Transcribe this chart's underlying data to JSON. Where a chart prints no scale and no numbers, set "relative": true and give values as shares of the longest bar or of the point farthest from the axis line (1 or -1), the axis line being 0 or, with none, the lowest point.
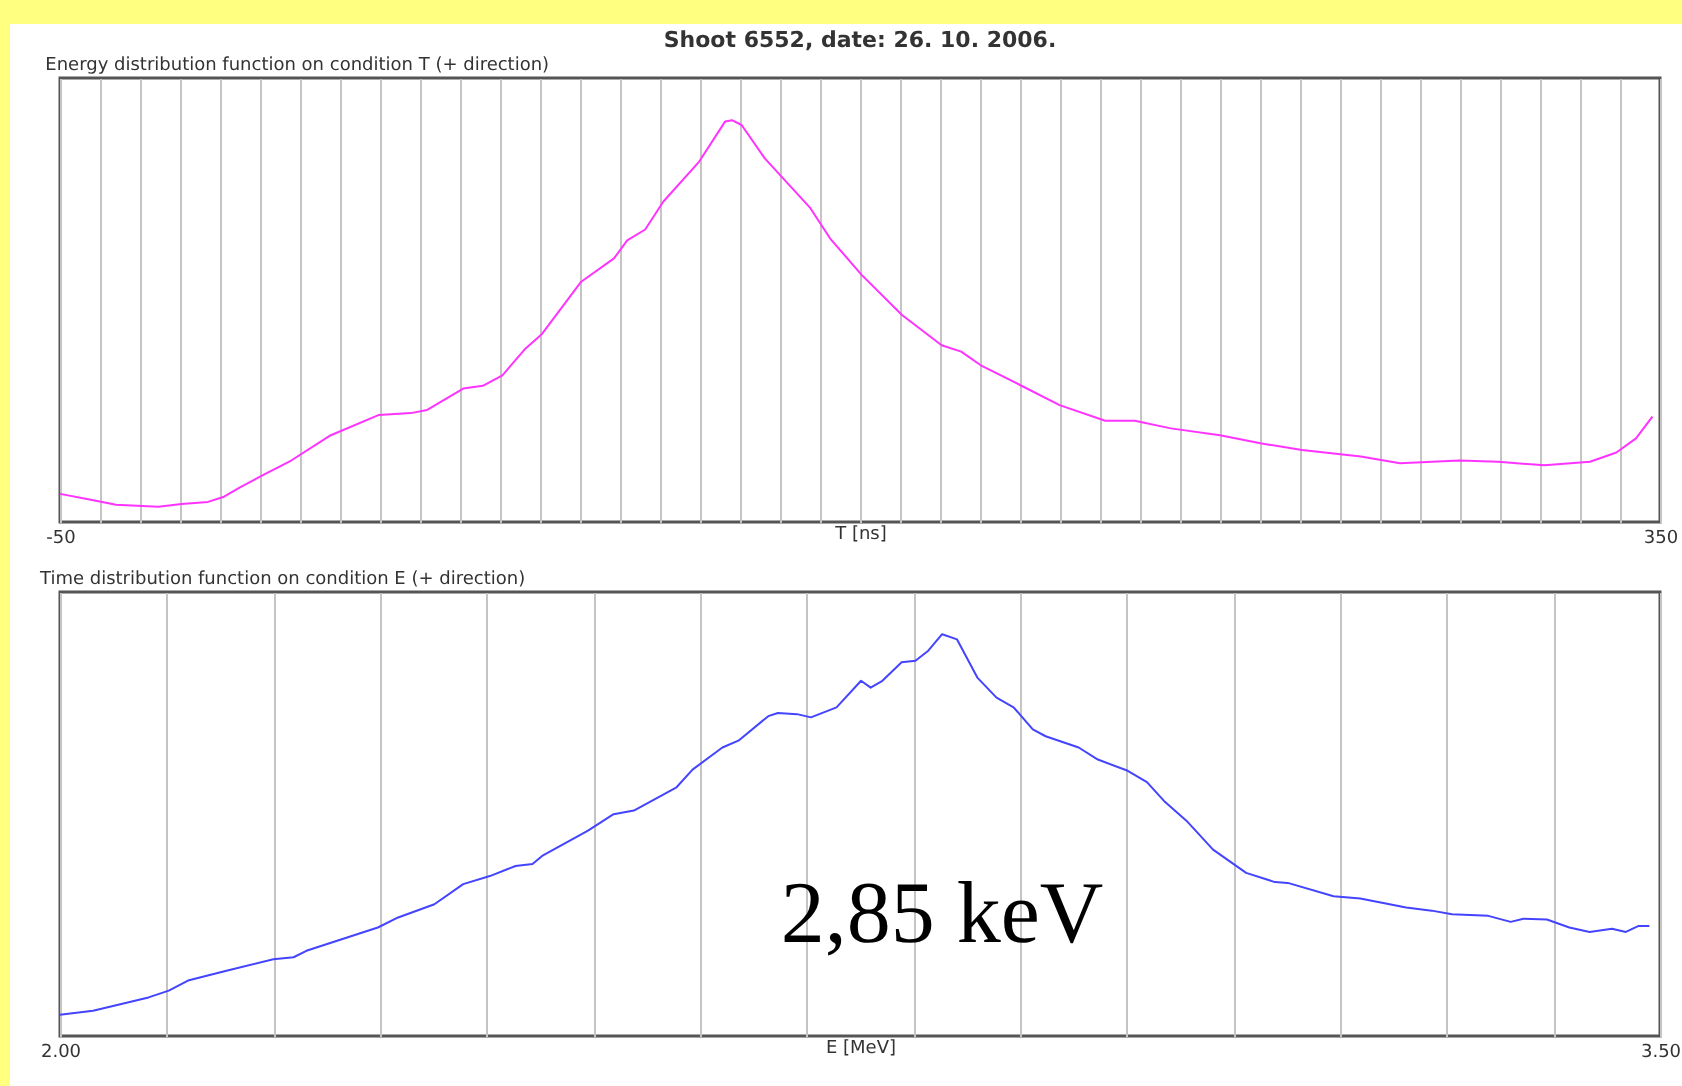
{
  "chart_data": [
    {
      "type": "line",
      "title": "Shoot 6552, date: 26. 10. 2006.",
      "subtitle": "Energy distribution function on condition T (+ direction)",
      "xlabel": "T [ns]",
      "relative": true,
      "color": "#ff33ff",
      "grid": "x",
      "xlim": [
        -50,
        350
      ],
      "xticks": [
        -50,
        {
          "value": -40,
          "label": null
        },
        {
          "value": -30,
          "label": null
        },
        {
          "value": -20,
          "label": null
        },
        {
          "value": -10,
          "label": null
        },
        {
          "value": 0,
          "label": null
        },
        {
          "value": 10,
          "label": null
        },
        {
          "value": 20,
          "label": null
        },
        {
          "value": 30,
          "label": null
        },
        {
          "value": 40,
          "label": null
        },
        {
          "value": 50,
          "label": null
        },
        {
          "value": 60,
          "label": null
        },
        {
          "value": 70,
          "label": null
        },
        {
          "value": 80,
          "label": null
        },
        {
          "value": 90,
          "label": null
        },
        {
          "value": 100,
          "label": null
        },
        {
          "value": 110,
          "label": null
        },
        {
          "value": 120,
          "label": null
        },
        {
          "value": 130,
          "label": null
        },
        {
          "value": 140,
          "label": null
        },
        {
          "value": 150,
          "label": null
        },
        {
          "value": 160,
          "label": null
        },
        {
          "value": 170,
          "label": null
        },
        {
          "value": 180,
          "label": null
        },
        {
          "value": 190,
          "label": null
        },
        {
          "value": 200,
          "label": null
        },
        {
          "value": 210,
          "label": null
        },
        {
          "value": 220,
          "label": null
        },
        {
          "value": 230,
          "label": null
        },
        {
          "value": 240,
          "label": null
        },
        {
          "value": 250,
          "label": null
        },
        {
          "value": 260,
          "label": null
        },
        {
          "value": 270,
          "label": null
        },
        {
          "value": 280,
          "label": null
        },
        {
          "value": 290,
          "label": null
        },
        {
          "value": 300,
          "label": null
        },
        {
          "value": 310,
          "label": null
        },
        {
          "value": 320,
          "label": null
        },
        {
          "value": 330,
          "label": null
        },
        {
          "value": 340,
          "label": null
        },
        350
      ],
      "x": [
        -50,
        -42.6,
        -36,
        -25.4,
        -19.6,
        -13,
        -9,
        -5,
        0,
        7.8,
        17.7,
        29.6,
        37.7,
        41.8,
        50.8,
        55.7,
        60.6,
        66.4,
        70.5,
        80.3,
        88.5,
        91.8,
        96.3,
        100.8,
        109.8,
        116.3,
        118,
        120.4,
        126.2,
        137.6,
        142.5,
        150.4,
        160.5,
        170.4,
        175.3,
        180.2,
        190,
        199.9,
        211.3,
        218.7,
        227.7,
        240,
        250.1,
        260.5,
        275.2,
        285,
        299.8,
        309.6,
        321.1,
        332.5,
        339.1,
        344,
        348.1
      ],
      "values": [
        0.07,
        0.056,
        0.043,
        0.038,
        0.045,
        0.05,
        0.063,
        0.086,
        0.113,
        0.153,
        0.216,
        0.266,
        0.271,
        0.279,
        0.332,
        0.339,
        0.365,
        0.432,
        0.468,
        0.598,
        0.656,
        0.701,
        0.728,
        0.797,
        0.897,
        0.997,
        1,
        0.988,
        0.905,
        0.781,
        0.706,
        0.615,
        0.515,
        0.44,
        0.424,
        0.39,
        0.341,
        0.291,
        0.252,
        0.252,
        0.233,
        0.216,
        0.196,
        0.179,
        0.163,
        0.146,
        0.153,
        0.15,
        0.141,
        0.15,
        0.173,
        0.208,
        0.262
      ]
    },
    {
      "type": "line",
      "title": "Time distribution function on condition E (+ direction)",
      "xlabel": "E [MeV]",
      "relative": true,
      "color": "#4444ff",
      "grid": "x",
      "xlim": [
        2,
        3.5
      ],
      "xticks": [
        {
          "value": 2,
          "label": "2.00"
        },
        {
          "value": 2.1,
          "label": null
        },
        {
          "value": 2.2,
          "label": null
        },
        {
          "value": 2.3,
          "label": null
        },
        {
          "value": 2.4,
          "label": null
        },
        {
          "value": 2.5,
          "label": null
        },
        {
          "value": 2.6,
          "label": null
        },
        {
          "value": 2.7,
          "label": null
        },
        {
          "value": 2.8,
          "label": null
        },
        {
          "value": 2.9,
          "label": null
        },
        {
          "value": 3,
          "label": null
        },
        {
          "value": 3.1,
          "label": null
        },
        {
          "value": 3.2,
          "label": null
        },
        {
          "value": 3.3,
          "label": null
        },
        {
          "value": 3.4,
          "label": null
        },
        {
          "value": 3.5,
          "label": "3.50"
        }
      ],
      "annotations": [
        "2,85 keV"
      ],
      "x": [
        2,
        2.031,
        2.083,
        2.102,
        2.12,
        2.157,
        2.2,
        2.219,
        2.231,
        2.298,
        2.317,
        2.351,
        2.378,
        2.403,
        2.427,
        2.443,
        2.452,
        2.495,
        2.519,
        2.538,
        2.578,
        2.593,
        2.621,
        2.636,
        2.664,
        2.673,
        2.691,
        2.704,
        2.728,
        2.751,
        2.76,
        2.771,
        2.789,
        2.802,
        2.814,
        2.827,
        2.841,
        2.86,
        2.878,
        2.894,
        2.912,
        2.924,
        2.955,
        2.973,
        3.001,
        3.019,
        3.035,
        3.056,
        3.081,
        3.112,
        3.139,
        3.151,
        3.194,
        3.219,
        3.262,
        3.286,
        3.305,
        3.339,
        3.36,
        3.372,
        3.394,
        3.415,
        3.434,
        3.455,
        3.468,
        3.48,
        3.49
      ],
      "values": [
        0.053,
        0.063,
        0.096,
        0.113,
        0.138,
        0.163,
        0.191,
        0.196,
        0.212,
        0.27,
        0.295,
        0.328,
        0.378,
        0.398,
        0.423,
        0.428,
        0.448,
        0.511,
        0.552,
        0.561,
        0.619,
        0.663,
        0.718,
        0.735,
        0.796,
        0.804,
        0.801,
        0.793,
        0.818,
        0.884,
        0.867,
        0.884,
        0.93,
        0.934,
        0.959,
        1,
        0.987,
        0.892,
        0.842,
        0.818,
        0.763,
        0.746,
        0.718,
        0.688,
        0.66,
        0.632,
        0.585,
        0.536,
        0.464,
        0.406,
        0.383,
        0.381,
        0.348,
        0.342,
        0.32,
        0.312,
        0.303,
        0.299,
        0.284,
        0.292,
        0.29,
        0.27,
        0.259,
        0.267,
        0.259,
        0.274,
        0.274
      ]
    }
  ]
}
